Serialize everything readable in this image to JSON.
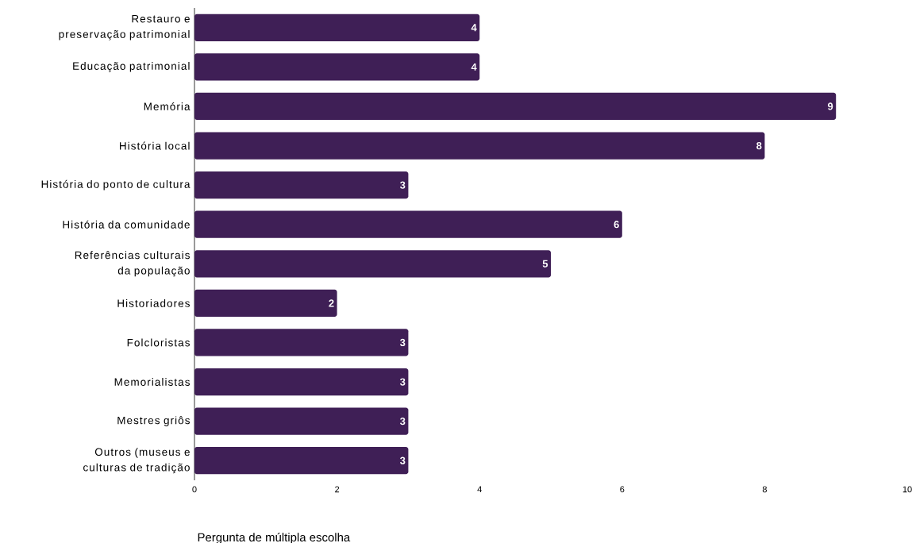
{
  "chart_data": {
    "type": "bar",
    "orientation": "horizontal",
    "xlabel": "Pergunta de múltipla escolha",
    "categories": [
      "Restauro e preservação patrimonial",
      "Educação patrimonial",
      "Memória",
      "História local",
      "História do ponto de cultura",
      "História da comunidade",
      "Referências culturais da população",
      "Historiadores",
      "Folcloristas",
      "Memorialistas",
      "Mestres griôs",
      "Outros (museus e culturas de tradição"
    ],
    "values": [
      4,
      4,
      9,
      8,
      3,
      6,
      5,
      2,
      3,
      3,
      3,
      3
    ],
    "color": "#3f1f56",
    "xlim": [
      0,
      10
    ],
    "xticks": [
      0,
      2,
      4,
      6,
      8,
      10
    ],
    "data_labels": true
  }
}
